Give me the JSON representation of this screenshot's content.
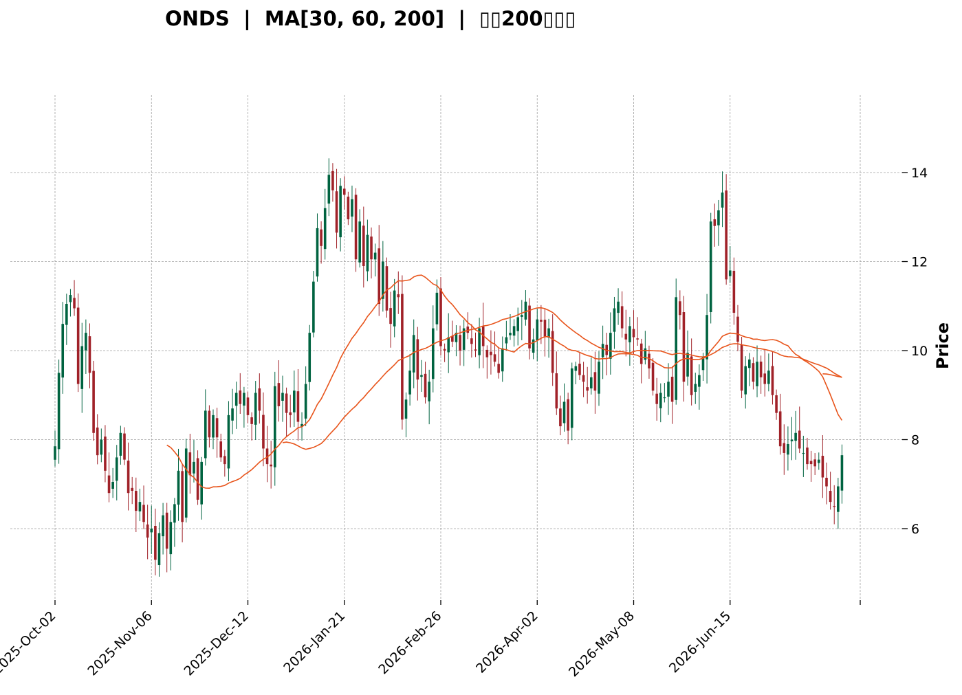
{
  "chart_data": {
    "type": "candlestick",
    "title": "ONDS  |  MA[30, 60, 200]  |  ▯▯200▯▯▯",
    "ylabel": "Price",
    "xlabel": "",
    "ylim": [
      4.5,
      16.5
    ],
    "yticks": [
      6,
      8,
      10,
      12,
      14
    ],
    "xticks": [
      "2025-Oct-02",
      "2025-Nov-06",
      "2025-Dec-12",
      "2026-Jan-21",
      "2026-Feb-26",
      "2026-Apr-02",
      "2026-May-08",
      "2026-Jun-15"
    ],
    "grid": true,
    "up_color": "#006340",
    "down_color": "#a02128",
    "ma_color": "#e8541b",
    "ma_periods": [
      30,
      60,
      200
    ],
    "closes": [
      7.85,
      9.5,
      10.6,
      11.05,
      11.25,
      10.95,
      9.25,
      10.1,
      10.4,
      9.5,
      8.15,
      7.65,
      8.0,
      7.3,
      6.8,
      7.05,
      7.6,
      8.15,
      7.55,
      6.8,
      6.85,
      6.4,
      6.6,
      6.15,
      5.8,
      6.0,
      5.3,
      5.9,
      6.3,
      5.55,
      6.15,
      6.55,
      7.3,
      6.15,
      7.8,
      7.2,
      7.5,
      6.65,
      7.5,
      8.65,
      8.05,
      8.55,
      8.05,
      7.6,
      7.45,
      8.55,
      8.7,
      9.05,
      8.8,
      9.05,
      8.55,
      8.35,
      9.05,
      8.65,
      7.8,
      7.45,
      7.4,
      9.2,
      8.75,
      9.05,
      8.6,
      8.55,
      9.1,
      8.4,
      8.35,
      9.25,
      10.4,
      11.55,
      12.75,
      12.35,
      13.2,
      13.95,
      13.6,
      12.65,
      13.7,
      13.5,
      12.95,
      13.4,
      12.05,
      12.9,
      11.9,
      12.6,
      12.05,
      12.2,
      11.05,
      12.0,
      10.9,
      10.6,
      11.35,
      11.2,
      8.45,
      8.9,
      9.55,
      10.35,
      9.35,
      9.45,
      8.95,
      9.3,
      10.5,
      11.3,
      10.1,
      10.0,
      10.3,
      10.2,
      10.4,
      10.0,
      10.5,
      10.4,
      10.15,
      10.0,
      10.5,
      10.1,
      9.85,
      9.9,
      9.75,
      9.5,
      10.05,
      10.3,
      10.4,
      10.55,
      10.75,
      10.8,
      11.1,
      10.05,
      10.25,
      10.7,
      10.65,
      10.3,
      10.5,
      9.5,
      8.7,
      8.3,
      8.85,
      8.2,
      9.6,
      9.65,
      9.45,
      9.3,
      9.1,
      9.4,
      9.1,
      9.75,
      10.15,
      9.9,
      10.4,
      10.95,
      11.1,
      10.5,
      10.25,
      10.55,
      10.3,
      10.25,
      9.7,
      10.05,
      9.6,
      9.1,
      8.8,
      9.05,
      8.95,
      9.3,
      8.85,
      11.2,
      10.8,
      9.3,
      9.95,
      9.0,
      9.25,
      9.45,
      9.85,
      10.8,
      12.9,
      12.8,
      13.15,
      13.55,
      11.6,
      11.8,
      10.85,
      10.2,
      9.1,
      9.65,
      9.8,
      9.3,
      9.75,
      9.4,
      9.25,
      9.55,
      9.0,
      8.6,
      7.85,
      7.7,
      7.9,
      8.0,
      8.15,
      7.8,
      7.7,
      7.45,
      7.45,
      7.4,
      7.55,
      7.15,
      6.95,
      6.6,
      6.5,
      6.95,
      7.65
    ]
  }
}
